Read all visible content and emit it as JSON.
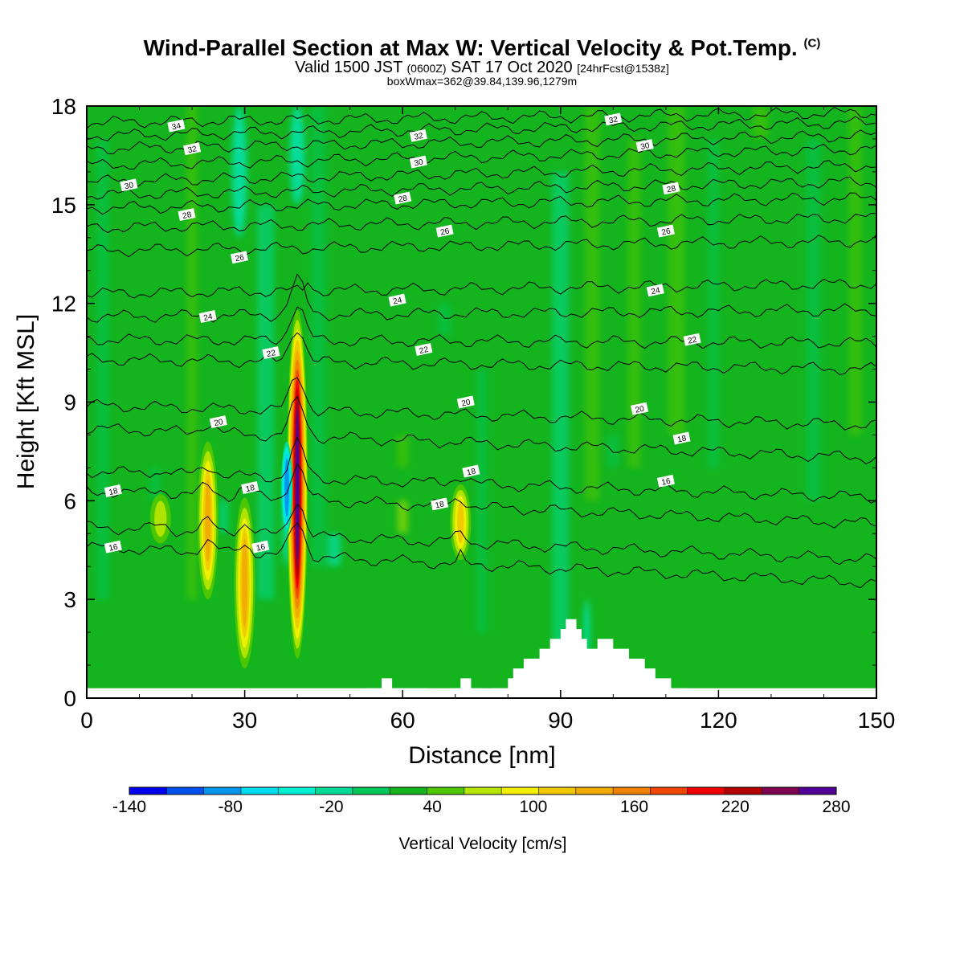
{
  "title": {
    "main": "Wind-Parallel Section at Max W: Vertical Velocity & Pot.Temp.",
    "copyright": "(C)",
    "valid_prefix": "Valid 1500 JST",
    "utc": "(0600Z)",
    "date": "SAT 17 Oct 2020",
    "forecast": "[24hrFcst@1538z]",
    "box_info": "boxWmax=362@39.84,139.96,1279m"
  },
  "chart_data": {
    "type": "heatmap",
    "xlabel": "Distance [nm]",
    "ylabel": "Height [Kft MSL]",
    "xlim": [
      0,
      150
    ],
    "ylim": [
      0,
      18
    ],
    "xticks": [
      0,
      30,
      60,
      90,
      120,
      150
    ],
    "yticks": [
      0,
      3,
      6,
      9,
      12,
      15,
      18
    ],
    "colorbar": {
      "label": "Vertical Velocity [cm/s]",
      "tick_labels": [
        "-140",
        "-80",
        "-20",
        "40",
        "100",
        "160",
        "220",
        "280"
      ],
      "colors": [
        "#0000f0",
        "#0050f0",
        "#0096f0",
        "#00dcf0",
        "#00f0d2",
        "#00dc96",
        "#00c85a",
        "#14b41e",
        "#50c800",
        "#b4e600",
        "#f0f000",
        "#f0c800",
        "#f0aa00",
        "#f08200",
        "#f04600",
        "#f00000",
        "#b40000",
        "#820050",
        "#500096"
      ]
    },
    "terrain": [
      [
        52,
        0
      ],
      [
        53,
        0.1
      ],
      [
        53,
        0.3
      ],
      [
        56,
        0.3
      ],
      [
        56,
        0.6
      ],
      [
        58,
        0.6
      ],
      [
        58,
        0.3
      ],
      [
        65,
        0.3
      ],
      [
        65,
        0
      ],
      [
        69,
        0
      ],
      [
        69,
        0.3
      ],
      [
        71,
        0.3
      ],
      [
        71,
        0.6
      ],
      [
        73,
        0.6
      ],
      [
        73,
        0.3
      ],
      [
        75,
        0.3
      ],
      [
        75,
        0
      ],
      [
        77,
        0
      ],
      [
        77,
        0.3
      ],
      [
        80,
        0.3
      ],
      [
        80,
        0.6
      ],
      [
        81,
        0.6
      ],
      [
        81,
        0.9
      ],
      [
        83,
        0.9
      ],
      [
        83,
        1.2
      ],
      [
        86,
        1.2
      ],
      [
        86,
        1.5
      ],
      [
        88,
        1.5
      ],
      [
        88,
        1.8
      ],
      [
        90,
        1.8
      ],
      [
        90,
        2.1
      ],
      [
        91,
        2.1
      ],
      [
        91,
        2.4
      ],
      [
        93,
        2.4
      ],
      [
        93,
        2.1
      ],
      [
        94,
        2.1
      ],
      [
        94,
        1.8
      ],
      [
        95,
        1.8
      ],
      [
        95,
        1.5
      ],
      [
        97,
        1.5
      ],
      [
        97,
        1.8
      ],
      [
        100,
        1.8
      ],
      [
        100,
        1.5
      ],
      [
        103,
        1.5
      ],
      [
        103,
        1.2
      ],
      [
        106,
        1.2
      ],
      [
        106,
        0.9
      ],
      [
        108,
        0.9
      ],
      [
        108,
        0.6
      ],
      [
        111,
        0.6
      ],
      [
        111,
        0.3
      ],
      [
        114,
        0.3
      ],
      [
        114,
        0
      ],
      [
        150,
        0
      ]
    ],
    "updraft_cores": [
      {
        "x": 23,
        "y_bottom": 3.0,
        "y_top": 7.8,
        "w_max": 100
      },
      {
        "x": 30,
        "y_bottom": 0.9,
        "y_top": 6.1,
        "w_max": 100
      },
      {
        "x": 40,
        "y_bottom": 1.2,
        "y_top": 11.8,
        "w_max": 362
      },
      {
        "x": 71,
        "y_bottom": 4.2,
        "y_top": 6.5,
        "w_max": 80
      },
      {
        "x": 14,
        "y_bottom": 4.7,
        "y_top": 6.2,
        "w_max": 50
      }
    ],
    "downdraft_cores": [
      {
        "x": 38,
        "y_bottom": 5.0,
        "y_top": 7.8,
        "w_min": -100
      }
    ],
    "isentropes": [
      {
        "theta": 16,
        "y_left": 4.6,
        "y_right": 3.5
      },
      {
        "theta": 16,
        "y_left": 5.2,
        "y_right": 4.2
      },
      {
        "theta": 18,
        "y_left": 6.3,
        "y_right": 5.3
      },
      {
        "theta": 18,
        "y_left": 6.9,
        "y_right": 6.1
      },
      {
        "theta": 20,
        "y_left": 8.2,
        "y_right": 7.3
      },
      {
        "theta": 20,
        "y_left": 8.9,
        "y_right": 8.3
      },
      {
        "theta": 22,
        "y_left": 10.3,
        "y_right": 10.0
      },
      {
        "theta": 22,
        "y_left": 10.9,
        "y_right": 10.8
      },
      {
        "theta": 24,
        "y_left": 11.6,
        "y_right": 11.8
      },
      {
        "theta": 24,
        "y_left": 12.3,
        "y_right": 12.6
      },
      {
        "theta": 26,
        "y_left": 13.6,
        "y_right": 13.9
      },
      {
        "theta": 26,
        "y_left": 14.3,
        "y_right": 14.6
      },
      {
        "theta": 28,
        "y_left": 14.9,
        "y_right": 15.2
      },
      {
        "theta": 28,
        "y_left": 15.3,
        "y_right": 15.7
      },
      {
        "theta": 30,
        "y_left": 15.7,
        "y_right": 16.2
      },
      {
        "theta": 30,
        "y_left": 16.2,
        "y_right": 16.7
      },
      {
        "theta": 32,
        "y_left": 16.7,
        "y_right": 17.1
      },
      {
        "theta": 32,
        "y_left": 17.1,
        "y_right": 17.5
      },
      {
        "theta": 34,
        "y_left": 17.5,
        "y_right": 17.8
      }
    ],
    "contour_labels": [
      {
        "text": "34",
        "x": 17,
        "y": 17.4
      },
      {
        "text": "32",
        "x": 20,
        "y": 16.7
      },
      {
        "text": "30",
        "x": 8,
        "y": 15.6
      },
      {
        "text": "28",
        "x": 19,
        "y": 14.7
      },
      {
        "text": "26",
        "x": 29,
        "y": 13.4
      },
      {
        "text": "24",
        "x": 23,
        "y": 11.6
      },
      {
        "text": "22",
        "x": 35,
        "y": 10.5
      },
      {
        "text": "20",
        "x": 25,
        "y": 8.4
      },
      {
        "text": "18",
        "x": 5,
        "y": 6.3
      },
      {
        "text": "18",
        "x": 31,
        "y": 6.4
      },
      {
        "text": "16",
        "x": 5,
        "y": 4.6
      },
      {
        "text": "16",
        "x": 33,
        "y": 4.6
      },
      {
        "text": "32",
        "x": 63,
        "y": 17.1
      },
      {
        "text": "30",
        "x": 63,
        "y": 16.3
      },
      {
        "text": "28",
        "x": 60,
        "y": 15.2
      },
      {
        "text": "26",
        "x": 68,
        "y": 14.2
      },
      {
        "text": "24",
        "x": 59,
        "y": 12.1
      },
      {
        "text": "22",
        "x": 64,
        "y": 10.6
      },
      {
        "text": "20",
        "x": 72,
        "y": 9.0
      },
      {
        "text": "18",
        "x": 73,
        "y": 6.9
      },
      {
        "text": "18",
        "x": 67,
        "y": 5.9
      },
      {
        "text": "32",
        "x": 100,
        "y": 17.6
      },
      {
        "text": "30",
        "x": 106,
        "y": 16.8
      },
      {
        "text": "28",
        "x": 111,
        "y": 15.5
      },
      {
        "text": "26",
        "x": 110,
        "y": 14.2
      },
      {
        "text": "24",
        "x": 108,
        "y": 12.4
      },
      {
        "text": "22",
        "x": 115,
        "y": 10.9
      },
      {
        "text": "20",
        "x": 105,
        "y": 8.8
      },
      {
        "text": "18",
        "x": 113,
        "y": 7.9
      },
      {
        "text": "16",
        "x": 110,
        "y": 6.6
      }
    ]
  }
}
